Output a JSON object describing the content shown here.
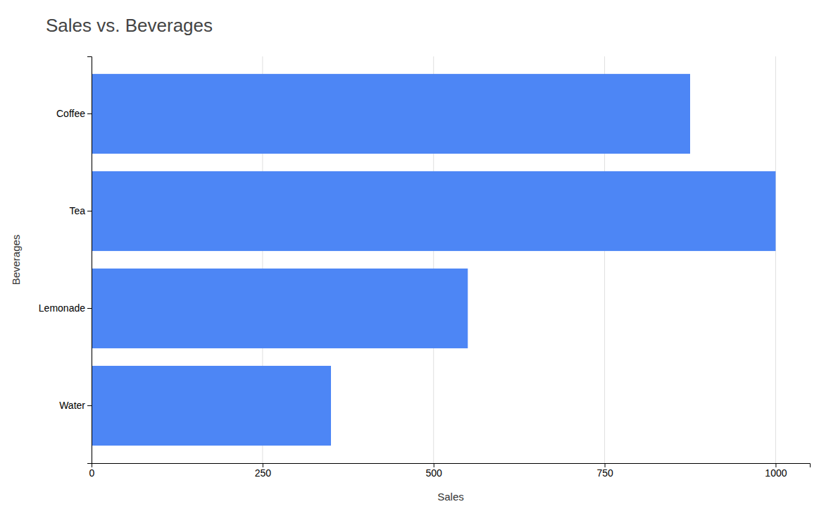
{
  "chart_data": {
    "type": "bar",
    "title": "Sales vs. Beverages",
    "categories": [
      "Water",
      "Lemonade",
      "Tea",
      "Coffee"
    ],
    "values": [
      350,
      550,
      1000,
      875
    ],
    "color": "#4d86f5",
    "orientation": "horizontal",
    "xlabel": "Sales",
    "ylabel": "Beverages",
    "xlim": [
      0,
      1050
    ],
    "xticks": [
      0,
      250,
      500,
      750,
      1000
    ],
    "grid": true
  }
}
